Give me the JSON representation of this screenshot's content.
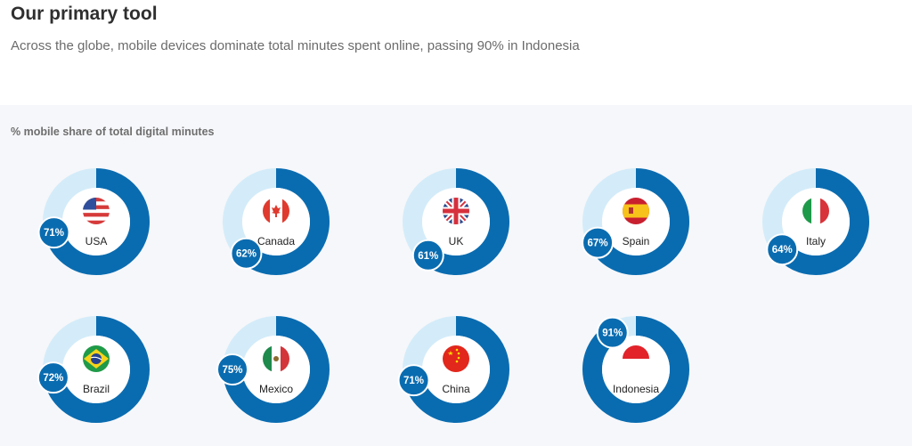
{
  "header": {
    "title": "Our primary tool",
    "subtitle": "Across the globe, mobile devices dominate total minutes spent online, passing 90% in Indonesia"
  },
  "colors": {
    "ring_fill": "#0a6cb0",
    "ring_track": "#d4ecf9",
    "badge": "#0a6cb0",
    "panel_bg": "#f6f7fa"
  },
  "chart_data": {
    "type": "donut",
    "title": "%  mobile share of total digital minutes",
    "unit": "%",
    "categories": [
      "USA",
      "Canada",
      "UK",
      "Spain",
      "Italy",
      "Brazil",
      "Mexico",
      "China",
      "Indonesia"
    ],
    "values": [
      71,
      62,
      61,
      67,
      64,
      72,
      75,
      71,
      91
    ],
    "labels": [
      "71%",
      "62%",
      "61%",
      "67%",
      "64%",
      "72%",
      "75%",
      "71%",
      "91%"
    ],
    "flag_icons": [
      "usa-flag-icon",
      "canada-flag-icon",
      "uk-flag-icon",
      "spain-flag-icon",
      "italy-flag-icon",
      "brazil-flag-icon",
      "mexico-flag-icon",
      "china-flag-icon",
      "indonesia-flag-icon"
    ],
    "max": 100
  }
}
